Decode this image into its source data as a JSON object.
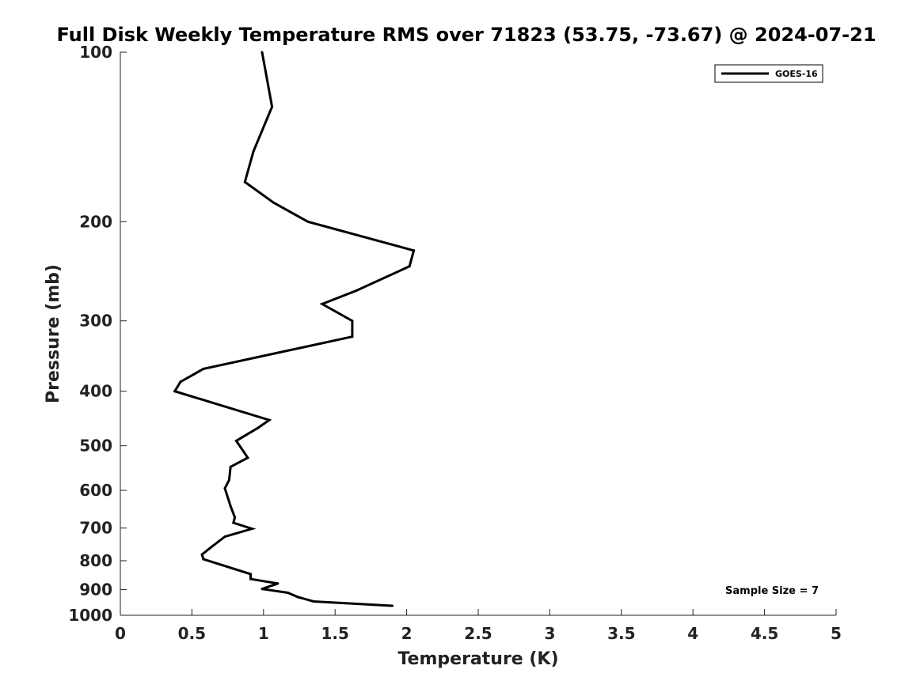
{
  "chart_data": {
    "type": "line",
    "title": "Full Disk Weekly Temperature RMS over 71823 (53.75, -73.67) @ 2024-07-21",
    "xlabel": "Temperature (K)",
    "ylabel": "Pressure (mb)",
    "xlim": [
      0,
      5
    ],
    "ylim": [
      100,
      1000
    ],
    "y_scale": "log",
    "y_reversed": true,
    "x_ticks": [
      "0",
      "0.5",
      "1",
      "1.5",
      "2",
      "2.5",
      "3",
      "3.5",
      "4",
      "4.5",
      "5"
    ],
    "y_ticks": [
      "100",
      "200",
      "300",
      "400",
      "500",
      "600",
      "700",
      "800",
      "900",
      "1000"
    ],
    "grid": false,
    "legend_position": "top-right",
    "series": [
      {
        "name": "GOES-16",
        "color": "#000000",
        "points": [
          {
            "x": 0.99,
            "p": 100
          },
          {
            "x": 1.06,
            "p": 125
          },
          {
            "x": 0.93,
            "p": 150
          },
          {
            "x": 0.87,
            "p": 170
          },
          {
            "x": 1.07,
            "p": 185
          },
          {
            "x": 1.31,
            "p": 200
          },
          {
            "x": 2.05,
            "p": 225
          },
          {
            "x": 2.02,
            "p": 240
          },
          {
            "x": 1.65,
            "p": 265
          },
          {
            "x": 1.41,
            "p": 280
          },
          {
            "x": 1.62,
            "p": 300
          },
          {
            "x": 1.62,
            "p": 320
          },
          {
            "x": 0.58,
            "p": 365
          },
          {
            "x": 0.42,
            "p": 385
          },
          {
            "x": 0.38,
            "p": 400
          },
          {
            "x": 1.04,
            "p": 450
          },
          {
            "x": 0.96,
            "p": 465
          },
          {
            "x": 0.81,
            "p": 490
          },
          {
            "x": 0.89,
            "p": 525
          },
          {
            "x": 0.77,
            "p": 545
          },
          {
            "x": 0.76,
            "p": 575
          },
          {
            "x": 0.73,
            "p": 595
          },
          {
            "x": 0.77,
            "p": 640
          },
          {
            "x": 0.8,
            "p": 670
          },
          {
            "x": 0.79,
            "p": 685
          },
          {
            "x": 0.92,
            "p": 702
          },
          {
            "x": 0.73,
            "p": 725
          },
          {
            "x": 0.64,
            "p": 755
          },
          {
            "x": 0.57,
            "p": 780
          },
          {
            "x": 0.58,
            "p": 795
          },
          {
            "x": 0.91,
            "p": 845
          },
          {
            "x": 0.91,
            "p": 862
          },
          {
            "x": 1.1,
            "p": 878
          },
          {
            "x": 0.99,
            "p": 898
          },
          {
            "x": 1.17,
            "p": 912
          },
          {
            "x": 1.24,
            "p": 928
          },
          {
            "x": 1.35,
            "p": 945
          },
          {
            "x": 1.9,
            "p": 962
          }
        ]
      }
    ],
    "annotations": [
      "Sample Size = 7"
    ]
  }
}
